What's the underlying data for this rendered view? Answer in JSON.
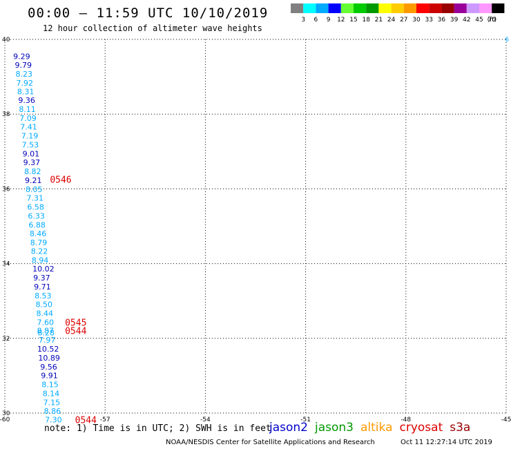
{
  "title": "00:00 – 11:59 UTC 10/10/2019",
  "subtitle": "12 hour collection of altimeter wave heights",
  "colorbar": {
    "colors": [
      "#808080",
      "#00ffff",
      "#00aaff",
      "#0000ff",
      "#66ff33",
      "#00cc00",
      "#009900",
      "#ffff00",
      "#ffcc00",
      "#ff9900",
      "#ff0000",
      "#cc0000",
      "#990000",
      "#990099",
      "#cc99ff",
      "#ff99ff",
      "#000000"
    ],
    "labels": [
      "3",
      "6",
      "9",
      "12",
      "15",
      "18",
      "21",
      "24",
      "27",
      "30",
      "33",
      "36",
      "39",
      "42",
      "45",
      "70"
    ],
    "unit": "(ft)"
  },
  "note": "note:  1) Time is in UTC;  2) SWH is in feet",
  "legend": [
    {
      "name": "jason2",
      "color": "#0000cc"
    },
    {
      "name": "jason3",
      "color": "#009900"
    },
    {
      "name": "altika",
      "color": "#ff9900"
    },
    {
      "name": "cryosat",
      "color": "#dd0000"
    },
    {
      "name": "s3a",
      "color": "#990000"
    }
  ],
  "credits": "NOAA/NESDIS Center for Satellite Applications and Research",
  "timestamp": "Oct 11 12:27:14 UTC 2019",
  "chart_data": {
    "type": "scatter",
    "xlim": [
      -60,
      -45
    ],
    "ylim": [
      30,
      40
    ],
    "x_ticks": [
      -60,
      -57,
      -54,
      -51,
      -48,
      -45
    ],
    "y_ticks": [
      30,
      32,
      34,
      36,
      38,
      40
    ],
    "grid": true,
    "corner_label": "6",
    "swh_points": [
      {
        "x": -59.75,
        "y": 39.55,
        "label": "9.29",
        "color": "#0000bb"
      },
      {
        "x": -59.7,
        "y": 39.32,
        "label": "9.79",
        "color": "#0000bb"
      },
      {
        "x": -59.68,
        "y": 39.08,
        "label": "8.23",
        "color": "#00aaff"
      },
      {
        "x": -59.66,
        "y": 38.84,
        "label": "7.92",
        "color": "#00aaff"
      },
      {
        "x": -59.63,
        "y": 38.6,
        "label": "8.31",
        "color": "#00aaff"
      },
      {
        "x": -59.6,
        "y": 38.37,
        "label": "9.36",
        "color": "#0000bb"
      },
      {
        "x": -59.58,
        "y": 38.13,
        "label": "8.11",
        "color": "#00aaff"
      },
      {
        "x": -59.56,
        "y": 37.89,
        "label": "7.09",
        "color": "#00aaff"
      },
      {
        "x": -59.54,
        "y": 37.66,
        "label": "7.41",
        "color": "#00aaff"
      },
      {
        "x": -59.51,
        "y": 37.42,
        "label": "7.19",
        "color": "#00aaff"
      },
      {
        "x": -59.49,
        "y": 37.18,
        "label": "7.53",
        "color": "#00aaff"
      },
      {
        "x": -59.47,
        "y": 36.94,
        "label": "9.01",
        "color": "#0000bb"
      },
      {
        "x": -59.45,
        "y": 36.71,
        "label": "9.37",
        "color": "#0000bb"
      },
      {
        "x": -59.42,
        "y": 36.47,
        "label": "8.82",
        "color": "#00aaff"
      },
      {
        "x": -59.4,
        "y": 36.23,
        "label": "9.21",
        "color": "#0000bb"
      },
      {
        "x": -59.38,
        "y": 35.99,
        "label": "8.05",
        "color": "#00aaff"
      },
      {
        "x": -59.35,
        "y": 35.76,
        "label": "7.31",
        "color": "#00aaff"
      },
      {
        "x": -59.33,
        "y": 35.52,
        "label": "6.58",
        "color": "#00aaff"
      },
      {
        "x": -59.31,
        "y": 35.28,
        "label": "6.33",
        "color": "#00aaff"
      },
      {
        "x": -59.29,
        "y": 35.04,
        "label": "6.88",
        "color": "#00aaff"
      },
      {
        "x": -59.26,
        "y": 34.81,
        "label": "8.46",
        "color": "#00aaff"
      },
      {
        "x": -59.24,
        "y": 34.57,
        "label": "8.79",
        "color": "#00aaff"
      },
      {
        "x": -59.22,
        "y": 34.33,
        "label": "8.22",
        "color": "#00aaff"
      },
      {
        "x": -59.2,
        "y": 34.09,
        "label": "8.94",
        "color": "#00aaff"
      },
      {
        "x": -59.17,
        "y": 33.86,
        "label": "10.02",
        "color": "#0000bb"
      },
      {
        "x": -59.15,
        "y": 33.62,
        "label": "9.37",
        "color": "#0000bb"
      },
      {
        "x": -59.13,
        "y": 33.38,
        "label": "9.71",
        "color": "#0000bb"
      },
      {
        "x": -59.11,
        "y": 33.14,
        "label": "8.53",
        "color": "#00aaff"
      },
      {
        "x": -59.08,
        "y": 32.91,
        "label": "8.50",
        "color": "#00aaff"
      },
      {
        "x": -59.06,
        "y": 32.67,
        "label": "8.44",
        "color": "#00aaff"
      },
      {
        "x": -59.04,
        "y": 32.43,
        "label": "7.60",
        "color": "#00aaff"
      },
      {
        "x": -59.04,
        "y": 32.21,
        "label": "8.87",
        "color": "#00aaff"
      },
      {
        "x": -59.02,
        "y": 32.15,
        "label": "8.28",
        "color": "#00aaff"
      },
      {
        "x": -58.99,
        "y": 31.96,
        "label": "7.97",
        "color": "#00aaff"
      },
      {
        "x": -59.03,
        "y": 31.72,
        "label": "10.52",
        "color": "#0000bb"
      },
      {
        "x": -59.0,
        "y": 31.48,
        "label": "10.89",
        "color": "#0000bb"
      },
      {
        "x": -58.94,
        "y": 31.24,
        "label": "9.56",
        "color": "#0000bb"
      },
      {
        "x": -58.92,
        "y": 31.01,
        "label": "9.91",
        "color": "#0000bb"
      },
      {
        "x": -58.9,
        "y": 30.77,
        "label": "8.15",
        "color": "#00aaff"
      },
      {
        "x": -58.87,
        "y": 30.53,
        "label": "8.14",
        "color": "#00aaff"
      },
      {
        "x": -58.85,
        "y": 30.29,
        "label": "7.15",
        "color": "#00aaff"
      },
      {
        "x": -58.83,
        "y": 30.06,
        "label": "8.86",
        "color": "#00aaff"
      },
      {
        "x": -58.8,
        "y": 29.82,
        "label": "7.30",
        "color": "#00aaff"
      }
    ],
    "time_labels": [
      {
        "x": -58.65,
        "y": 36.26,
        "label": "0546",
        "color": "#dd0000"
      },
      {
        "x": -58.2,
        "y": 32.43,
        "label": "0545",
        "color": "#dd0000"
      },
      {
        "x": -58.2,
        "y": 32.21,
        "label": "0544",
        "color": "#dd0000"
      },
      {
        "x": -57.9,
        "y": 29.82,
        "label": "0544",
        "color": "#dd0000"
      }
    ]
  }
}
